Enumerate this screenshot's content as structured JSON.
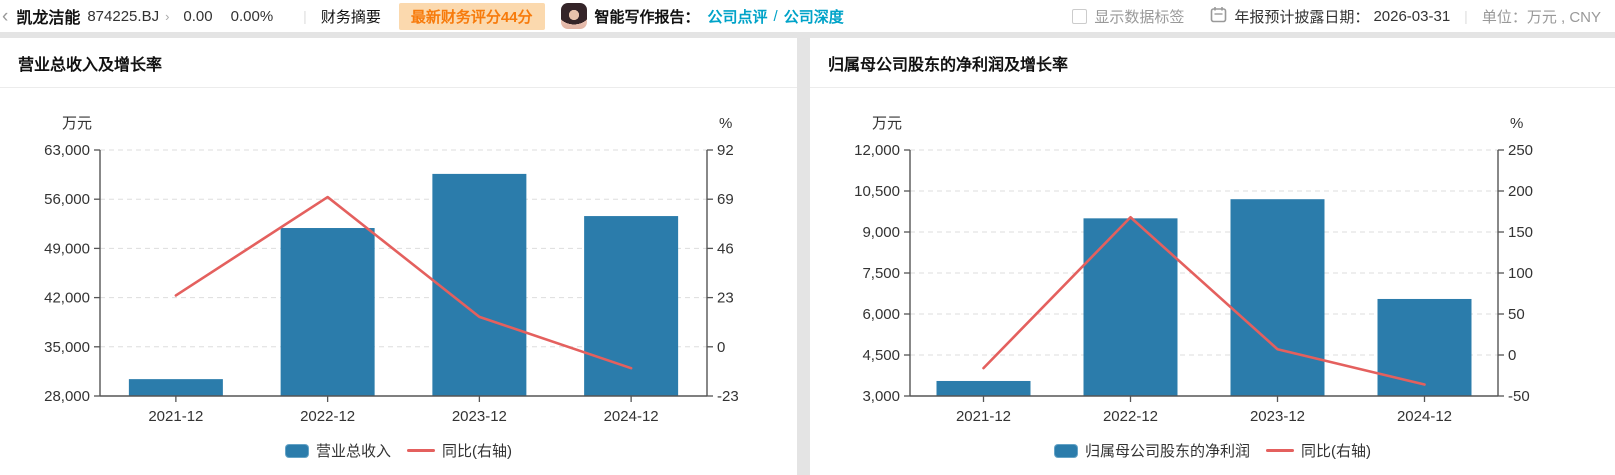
{
  "header": {
    "back_icon": "‹",
    "stock_name": "凯龙洁能",
    "stock_code": "874225.BJ",
    "chevron": "›",
    "price": "0.00",
    "change_percent": "0.00%",
    "divider": "|",
    "menu_financial_summary": "财务摘要",
    "score_badge": "最新财务评分44分",
    "ai_report_label": "智能写作报告：",
    "link_company_comment": "公司点评",
    "link_separator": "/",
    "link_company_depth": "公司深度",
    "show_data_labels_label": "显示数据标签",
    "annual_report_date_label": "年报预计披露日期：",
    "annual_report_date": "2026-03-31",
    "unit_text": "单位：万元 , CNY"
  },
  "colors": {
    "bar": "#2b7cab",
    "line": "#e4605e",
    "axis": "#555555",
    "grid": "#dddddd",
    "badge_bg": "#fbd9ae",
    "badge_text": "#f77b0c",
    "link": "#00a3c8"
  },
  "chart_data": [
    {
      "type": "bar",
      "title": "营业总收入及增长率",
      "categories": [
        "2021-12",
        "2022-12",
        "2023-12",
        "2024-12"
      ],
      "series": [
        {
          "name": "营业总收入",
          "type": "bar",
          "axis": "left",
          "values": [
            30400,
            51900,
            59600,
            53600
          ],
          "color": "#2b7cab"
        },
        {
          "name": "同比(右轴)",
          "type": "line",
          "axis": "right",
          "values": [
            24,
            70,
            14,
            -10
          ],
          "color": "#e4605e"
        }
      ],
      "y_left": {
        "unit": "万元",
        "min": 28000,
        "max": 63000,
        "step": 7000,
        "ticks": [
          "28,000",
          "35,000",
          "42,000",
          "49,000",
          "56,000",
          "63,000"
        ]
      },
      "y_right": {
        "unit": "%",
        "min": -23,
        "max": 92,
        "step": 23,
        "ticks": [
          "-23",
          "0",
          "23",
          "46",
          "69",
          "92"
        ]
      },
      "grid": true,
      "legend_position": "bottom"
    },
    {
      "type": "bar",
      "title": "归属母公司股东的净利润及增长率",
      "categories": [
        "2021-12",
        "2022-12",
        "2023-12",
        "2024-12"
      ],
      "series": [
        {
          "name": "归属母公司股东的净利润",
          "type": "bar",
          "axis": "left",
          "values": [
            3550,
            9500,
            10200,
            6550
          ],
          "color": "#2b7cab"
        },
        {
          "name": "同比(右轴)",
          "type": "line",
          "axis": "right",
          "values": [
            -16,
            168,
            7,
            -36
          ],
          "color": "#e4605e"
        }
      ],
      "y_left": {
        "unit": "万元",
        "min": 3000,
        "max": 12000,
        "step": 1500,
        "ticks": [
          "3,000",
          "4,500",
          "6,000",
          "7,500",
          "9,000",
          "10,500",
          "12,000"
        ]
      },
      "y_right": {
        "unit": "%",
        "min": -50,
        "max": 250,
        "step": 50,
        "ticks": [
          "-50",
          "0",
          "50",
          "100",
          "150",
          "200",
          "250"
        ]
      },
      "grid": true,
      "legend_position": "bottom"
    }
  ]
}
